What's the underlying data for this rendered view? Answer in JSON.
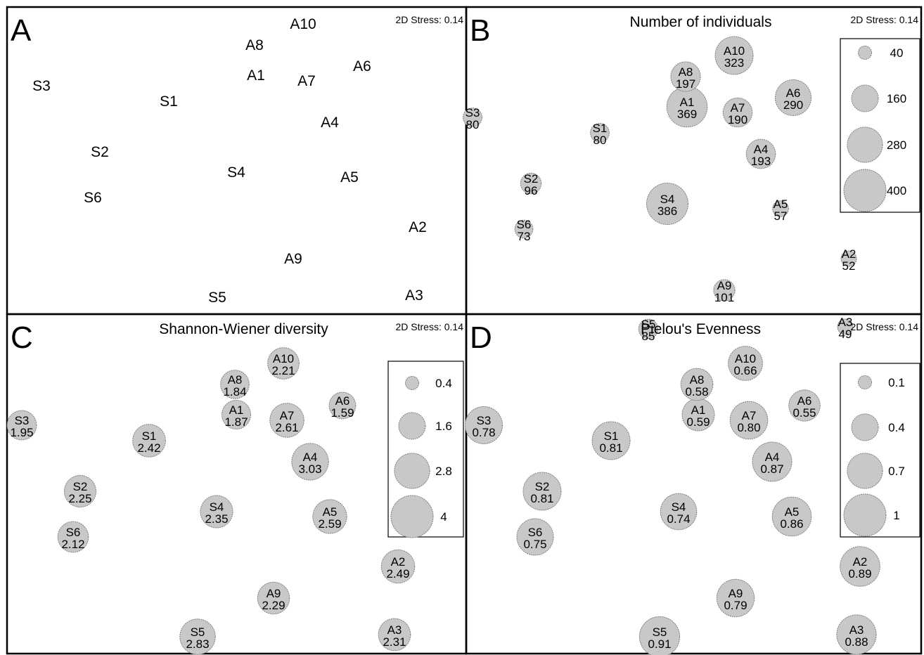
{
  "stress_label": "2D Stress: 0.14",
  "colors": {
    "bubble_fill": "#c8c8c8",
    "bubble_stroke": "#808080",
    "frame": "#000000"
  },
  "chart_data": [
    {
      "panel": "A",
      "type": "scatter",
      "title": "",
      "stress": "2D Stress: 0.14",
      "grid": false,
      "points": [
        {
          "label": "S1"
        },
        {
          "label": "S2"
        },
        {
          "label": "S3"
        },
        {
          "label": "S4"
        },
        {
          "label": "S5"
        },
        {
          "label": "S6"
        },
        {
          "label": "A1"
        },
        {
          "label": "A2"
        },
        {
          "label": "A3"
        },
        {
          "label": "A4"
        },
        {
          "label": "A5"
        },
        {
          "label": "A6"
        },
        {
          "label": "A7"
        },
        {
          "label": "A8"
        },
        {
          "label": "A9"
        },
        {
          "label": "A10"
        }
      ]
    },
    {
      "panel": "B",
      "type": "scatter",
      "title": "Number of individuals",
      "stress": "2D Stress: 0.14",
      "grid": false,
      "legend_position": "right",
      "legend": [
        "40",
        "160",
        "280",
        "400"
      ],
      "legend_values": [
        40,
        160,
        280,
        400
      ],
      "points": [
        {
          "label": "S1",
          "value": "80"
        },
        {
          "label": "S2",
          "value": "96"
        },
        {
          "label": "S3",
          "value": "80"
        },
        {
          "label": "S4",
          "value": "386"
        },
        {
          "label": "S5",
          "value": "85"
        },
        {
          "label": "S6",
          "value": "73"
        },
        {
          "label": "A1",
          "value": "369"
        },
        {
          "label": "A2",
          "value": "52"
        },
        {
          "label": "A3",
          "value": "49"
        },
        {
          "label": "A4",
          "value": "193"
        },
        {
          "label": "A5",
          "value": "57"
        },
        {
          "label": "A6",
          "value": "290"
        },
        {
          "label": "A7",
          "value": "190"
        },
        {
          "label": "A8",
          "value": "197"
        },
        {
          "label": "A9",
          "value": "101"
        },
        {
          "label": "A10",
          "value": "323"
        }
      ]
    },
    {
      "panel": "C",
      "type": "scatter",
      "title": "Shannon-Wiener diversity",
      "stress": "2D Stress: 0.14",
      "grid": false,
      "legend_position": "right",
      "legend": [
        "0.4",
        "1.6",
        "2.8",
        "4"
      ],
      "legend_values": [
        0.4,
        1.6,
        2.8,
        4
      ],
      "points": [
        {
          "label": "S1",
          "value": "2.42"
        },
        {
          "label": "S2",
          "value": "2.25"
        },
        {
          "label": "S3",
          "value": "1.95"
        },
        {
          "label": "S4",
          "value": "2.35"
        },
        {
          "label": "S5",
          "value": "2.83"
        },
        {
          "label": "S6",
          "value": "2.12"
        },
        {
          "label": "A1",
          "value": "1.87"
        },
        {
          "label": "A2",
          "value": "2.49"
        },
        {
          "label": "A3",
          "value": "2.31"
        },
        {
          "label": "A4",
          "value": "3.03"
        },
        {
          "label": "A5",
          "value": "2.59"
        },
        {
          "label": "A6",
          "value": "1.59"
        },
        {
          "label": "A7",
          "value": "2.61"
        },
        {
          "label": "A8",
          "value": "1.84"
        },
        {
          "label": "A9",
          "value": "2.29"
        },
        {
          "label": "A10",
          "value": "2.21"
        }
      ]
    },
    {
      "panel": "D",
      "type": "scatter",
      "title": "Pielou's Evenness",
      "stress": "2D Stress: 0.14",
      "grid": false,
      "legend_position": "right",
      "legend": [
        "0.1",
        "0.4",
        "0.7",
        "1"
      ],
      "legend_values": [
        0.1,
        0.4,
        0.7,
        1
      ],
      "points": [
        {
          "label": "S1",
          "value": "0.81"
        },
        {
          "label": "S2",
          "value": "0.81"
        },
        {
          "label": "S3",
          "value": "0.78"
        },
        {
          "label": "S4",
          "value": "0.74"
        },
        {
          "label": "S5",
          "value": "0.91"
        },
        {
          "label": "S6",
          "value": "0.75"
        },
        {
          "label": "A1",
          "value": "0.59"
        },
        {
          "label": "A2",
          "value": "0.89"
        },
        {
          "label": "A3",
          "value": "0.88"
        },
        {
          "label": "A4",
          "value": "0.87"
        },
        {
          "label": "A5",
          "value": "0.86"
        },
        {
          "label": "A6",
          "value": "0.55"
        },
        {
          "label": "A7",
          "value": "0.80"
        },
        {
          "label": "A8",
          "value": "0.58"
        },
        {
          "label": "A9",
          "value": "0.79"
        },
        {
          "label": "A10",
          "value": "0.66"
        }
      ]
    }
  ]
}
